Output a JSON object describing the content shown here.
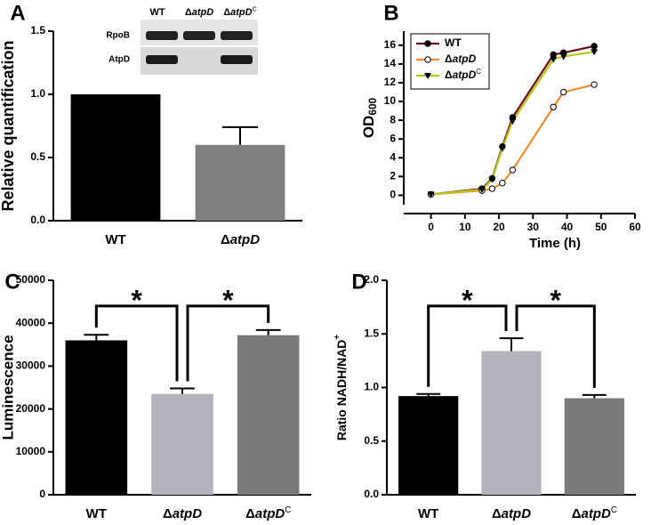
{
  "chart_data": [
    {
      "panel": "A",
      "type": "bar",
      "ylabel": "Relative quantification",
      "categories": [
        "WT",
        "ΔatpD"
      ],
      "values": [
        1.0,
        0.6
      ],
      "errors": [
        0,
        0.14
      ],
      "colors": [
        "#000000",
        "#808080"
      ],
      "ylim": [
        0,
        1.5
      ],
      "yticks": [
        {
          "value": 0,
          "label": "0.0"
        },
        {
          "value": 0.5,
          "label": "0.5"
        },
        {
          "value": 1,
          "label": "1.0"
        },
        {
          "value": 1.5,
          "label": "1.5"
        }
      ],
      "inset": {
        "columns": [
          "WT",
          "ΔatpD",
          "ΔatpDC"
        ],
        "rows": [
          "RpoB",
          "AtpD"
        ]
      }
    },
    {
      "panel": "B",
      "type": "line",
      "xlabel": "Time (h)",
      "ylabel": "OD600",
      "legend": "top-left",
      "series": [
        {
          "name": "WT",
          "color": "#6b0f1a",
          "marker": "circle-filled",
          "x": [
            0,
            15,
            18,
            21,
            24,
            36,
            39,
            48
          ],
          "values": [
            0.1,
            0.7,
            1.8,
            5.2,
            8.3,
            15.0,
            15.2,
            15.9
          ]
        },
        {
          "name": "ΔatpD",
          "color": "#f28c28",
          "marker": "circle-open",
          "x": [
            0,
            15,
            18,
            21,
            24,
            36,
            39,
            48
          ],
          "values": [
            0.1,
            0.5,
            0.7,
            1.3,
            2.7,
            9.4,
            11.0,
            11.8
          ]
        },
        {
          "name": "ΔatpDC",
          "color": "#b5c81a",
          "marker": "triangle-down",
          "x": [
            0,
            15,
            18,
            21,
            24,
            36,
            39,
            48
          ],
          "values": [
            0.1,
            0.6,
            1.7,
            5.0,
            7.9,
            14.5,
            14.8,
            15.3
          ]
        }
      ],
      "xlim": [
        -8,
        60
      ],
      "xticks": [
        0,
        10,
        20,
        30,
        40,
        50,
        60
      ],
      "ylim": [
        -1,
        17.5
      ],
      "yticks": [
        0,
        2,
        4,
        6,
        8,
        10,
        12,
        14,
        16
      ]
    },
    {
      "panel": "C",
      "type": "bar",
      "ylabel": "Luminescence",
      "categories": [
        "WT",
        "ΔatpD",
        "ΔatpDC"
      ],
      "values": [
        36000,
        23500,
        37200
      ],
      "errors": [
        1300,
        1300,
        1200
      ],
      "colors": [
        "#000000",
        "#b3b3bb",
        "#7a7a7a"
      ],
      "annotations": [
        "*",
        "*"
      ],
      "ylim": [
        0,
        50000
      ],
      "yticks": [
        0,
        10000,
        20000,
        30000,
        40000,
        50000
      ]
    },
    {
      "panel": "D",
      "type": "bar",
      "ylabel": "Ratio NADH/NAD+",
      "categories": [
        "WT",
        "ΔatpD",
        "ΔatpDC"
      ],
      "values": [
        0.92,
        1.34,
        0.9
      ],
      "errors": [
        0.02,
        0.12,
        0.03
      ],
      "colors": [
        "#000000",
        "#b3b3bb",
        "#7a7a7a"
      ],
      "annotations": [
        "*",
        "*"
      ],
      "ylim": [
        0,
        2
      ],
      "yticks": [
        {
          "value": 0,
          "label": "0.0"
        },
        {
          "value": 0.5,
          "label": "0.5"
        },
        {
          "value": 1,
          "label": "1.0"
        },
        {
          "value": 1.5,
          "label": "1.5"
        },
        {
          "value": 2,
          "label": "2.0"
        }
      ]
    }
  ]
}
